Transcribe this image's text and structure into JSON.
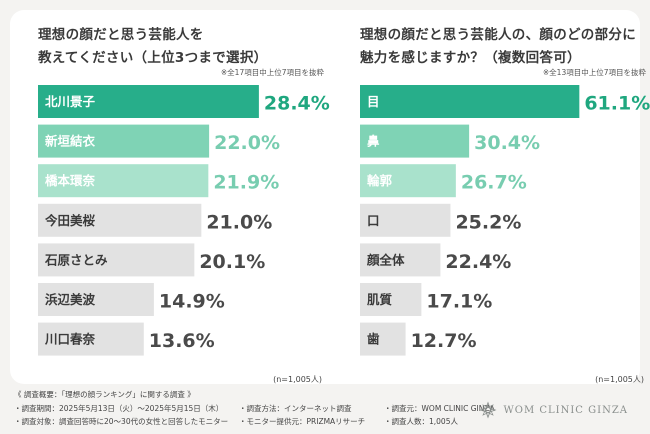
{
  "colors": {
    "dark": "#27ae8a",
    "mid": "#7fd3b5",
    "light": "#a9e2cc",
    "gray": "#e2e2e2",
    "value_dark": "#1fa77f",
    "value_mid": "#78cdb0",
    "value_gray": "#4a4a4a"
  },
  "chart_data": [
    {
      "type": "bar",
      "orientation": "horizontal",
      "title": "理想の顔だと思う芸能人を\n教えてください（上位3つまで選択）",
      "note": "※全17項目中上位7項目を抜粋",
      "categories": [
        "北川景子",
        "新垣結衣",
        "橋本環奈",
        "今田美桜",
        "石原さとみ",
        "浜辺美波",
        "川口春奈"
      ],
      "values": [
        28.4,
        22.0,
        21.9,
        21.0,
        20.1,
        14.9,
        13.6
      ],
      "value_labels": [
        "28.4%",
        "22.0%",
        "21.9%",
        "21.0%",
        "20.1%",
        "14.9%",
        "13.6%"
      ],
      "xlim": [
        0,
        36
      ],
      "respondents": "(n=1,005人)"
    },
    {
      "type": "bar",
      "orientation": "horizontal",
      "title": "理想の顔だと思う芸能人の、顔のどの部分に\n魅力を感じますか？（複数回答可）",
      "note": "※全13項目中上位7項目を抜粋",
      "categories": [
        "目",
        "鼻",
        "輪郭",
        "口",
        "顔全体",
        "肌質",
        "歯"
      ],
      "values": [
        61.1,
        30.4,
        26.7,
        25.2,
        22.4,
        17.1,
        12.7
      ],
      "value_labels": [
        "61.1%",
        "30.4%",
        "26.7%",
        "25.2%",
        "22.4%",
        "17.1%",
        "12.7%"
      ],
      "xlim": [
        0,
        78
      ],
      "respondents": "(n=1,005人)"
    }
  ],
  "footer": {
    "heading": "《 調査概要：「理想の顔ランキング」に関する調査 》",
    "period": "・調査期間：2025年5月13日（火）〜2025年5月15日（木）",
    "method": "・調査方法：インターネット調査",
    "organizer": "・調査元：WOM CLINIC GINZA",
    "target": "・調査対象：調査回答時に20〜30代の女性と回答したモニター",
    "provider": "・モニター提供元：PRIZMAリサーチ",
    "count": "・調査人数：1,005人"
  },
  "brand": {
    "name": "WOM CLINIC GINZA",
    "icon": "lotus-logo-icon"
  }
}
